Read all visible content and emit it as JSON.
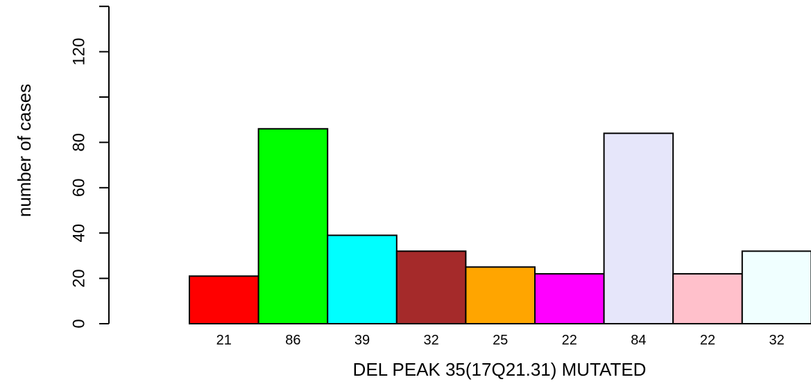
{
  "chart_data": {
    "type": "bar",
    "title": "",
    "xlabel": "DEL PEAK 35(17Q21.31) MUTATED",
    "ylabel": "number of cases",
    "ylim": [
      0,
      140
    ],
    "yticks": [
      0,
      20,
      40,
      60,
      80,
      120
    ],
    "grid": false,
    "categories": [
      "21",
      "86",
      "39",
      "32",
      "25",
      "22",
      "84",
      "22",
      "32"
    ],
    "values": [
      21,
      86,
      39,
      32,
      25,
      22,
      84,
      22,
      32
    ],
    "colors": [
      "#ff0000",
      "#00ff00",
      "#00ffff",
      "#a52a2a",
      "#ffa500",
      "#ff00ff",
      "#e6e6fa",
      "#ffc0cb",
      "#f0ffff"
    ]
  }
}
